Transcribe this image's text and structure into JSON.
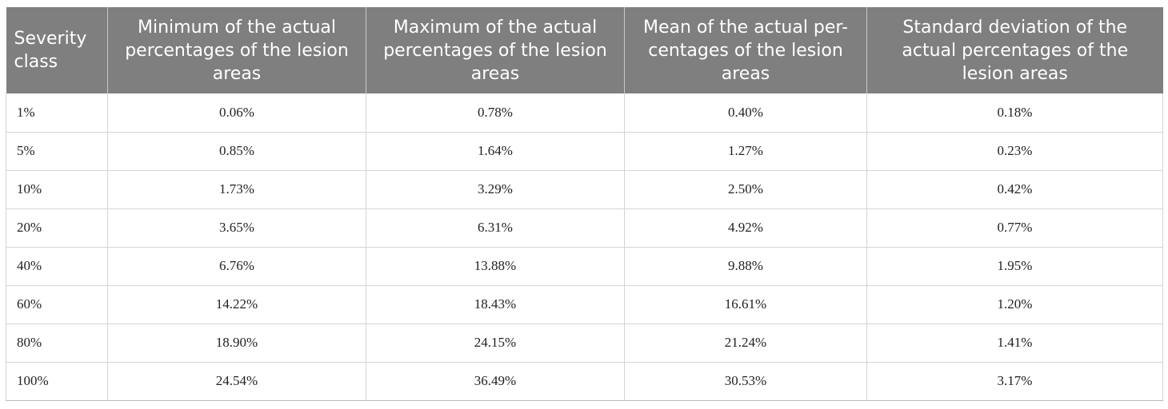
{
  "table": {
    "headers": [
      "Severity class",
      "Minimum of the actual percentages of the lesion areas",
      "Maximum of the actual percentages of the lesion areas",
      "Mean of the actual percentages of the lesion areas",
      "Standard deviation of the actual percentages of the lesion areas"
    ],
    "header_lines": [
      [
        "Severity",
        "class"
      ],
      [
        "Minimum of the actual",
        "percentages of the lesion",
        "areas"
      ],
      [
        "Maximum of the actual",
        "percentages of the lesion",
        "areas"
      ],
      [
        "Mean of the actual per-",
        "centages of the lesion",
        "areas"
      ],
      [
        "Standard deviation of the",
        "actual percentages of the",
        "lesion areas"
      ]
    ],
    "rows": [
      [
        "1%",
        "0.06%",
        "0.78%",
        "0.40%",
        "0.18%"
      ],
      [
        "5%",
        "0.85%",
        "1.64%",
        "1.27%",
        "0.23%"
      ],
      [
        "10%",
        "1.73%",
        "3.29%",
        "2.50%",
        "0.42%"
      ],
      [
        "20%",
        "3.65%",
        "6.31%",
        "4.92%",
        "0.77%"
      ],
      [
        "40%",
        "6.76%",
        "13.88%",
        "9.88%",
        "1.95%"
      ],
      [
        "60%",
        "14.22%",
        "18.43%",
        "16.61%",
        "1.20%"
      ],
      [
        "80%",
        "18.90%",
        "24.15%",
        "21.24%",
        "1.41%"
      ],
      [
        "100%",
        "24.54%",
        "36.49%",
        "30.53%",
        "3.17%"
      ]
    ]
  },
  "colors": {
    "header_background": "#7f7f7f",
    "header_text": "#ffffff",
    "grid_line": "#d4d4d4",
    "body_text": "#222222"
  }
}
